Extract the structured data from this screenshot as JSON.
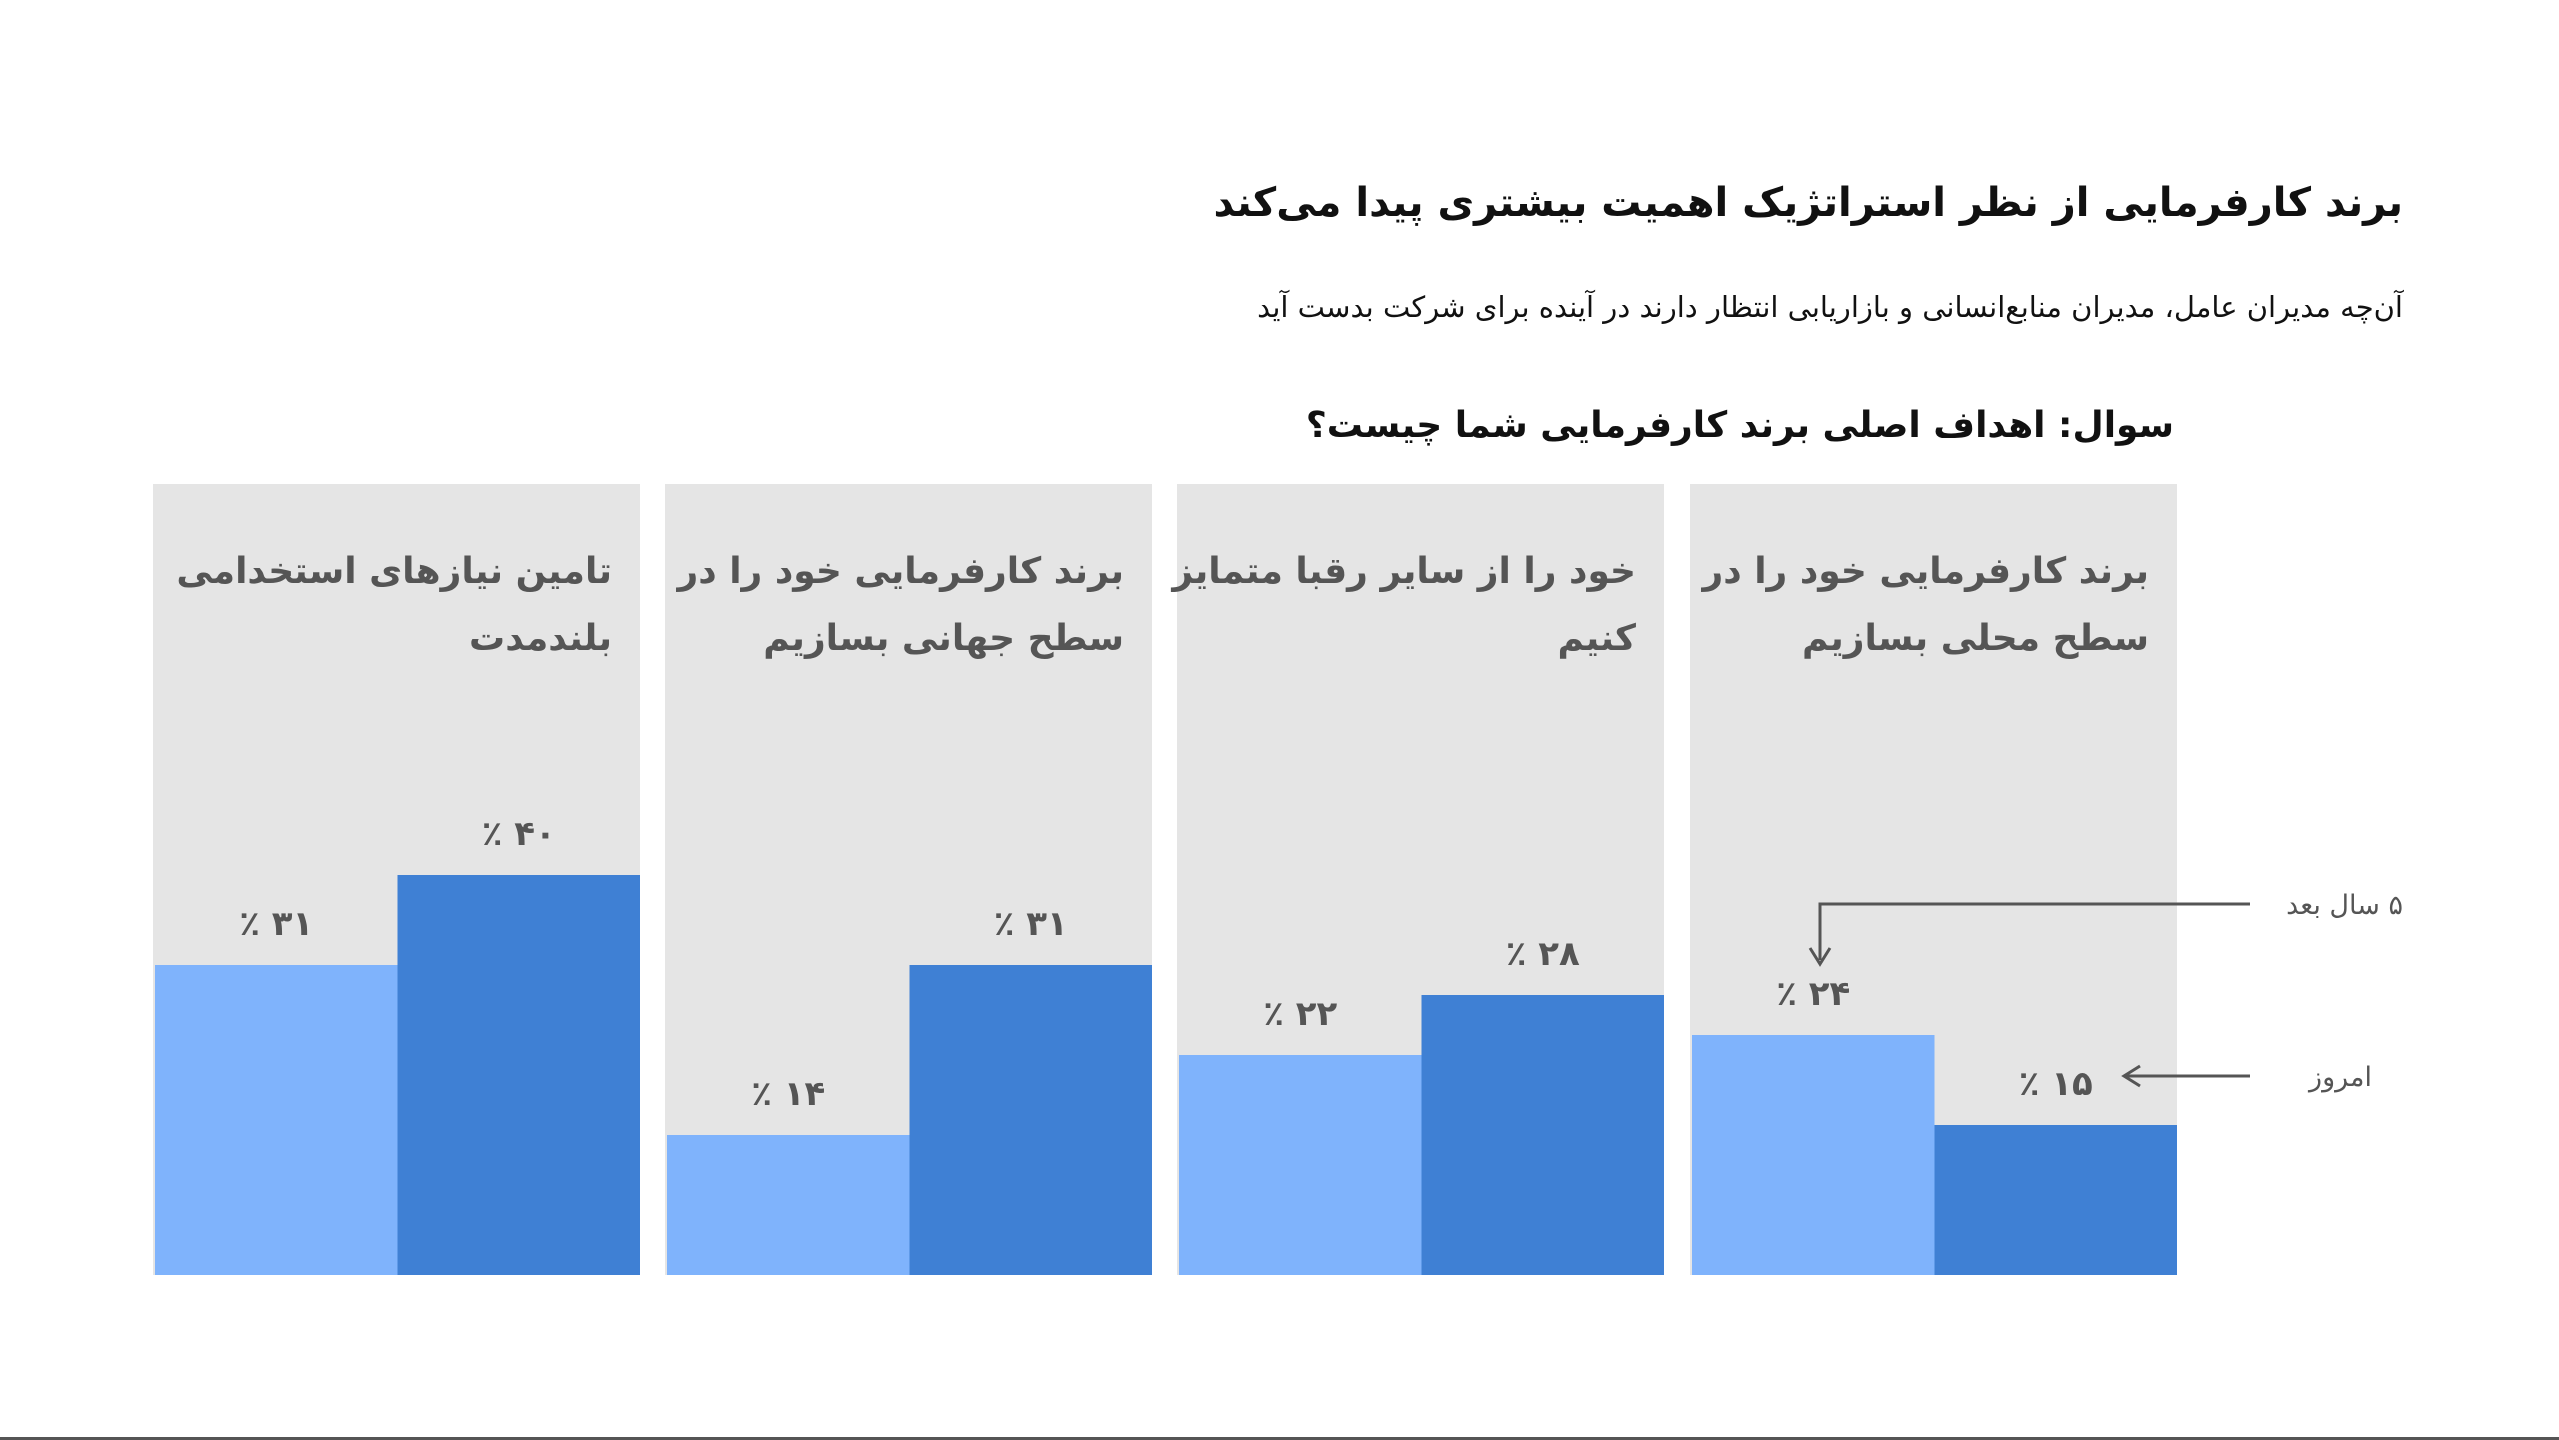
{
  "header": {
    "title": "برند کارفرمایی از نظر استراتژیک اهمیت بیشتری پیدا می‌کند",
    "subtitle": "آن‌چه مدیران عامل، مدیران منابع‌انسانی و بازاریابی انتظار دارند در آینده برای شرکت بدست آید",
    "question": "سوال: اهداف اصلی برند کارفرمایی شما چیست؟"
  },
  "chart_data": {
    "type": "bar",
    "title": "سوال: اهداف اصلی برند کارفرمایی شما چیست؟",
    "categories": [
      [
        "برند کارفرمایی خود را در",
        "سطح محلی بسازیم"
      ],
      [
        "خود را از سایر رقبا متمایز",
        "کنیم"
      ],
      [
        "برند کارفرمایی خود را در",
        "سطح جهانی بسازیم"
      ],
      [
        "تامین نیازهای استخدامی",
        "بلندمدت"
      ]
    ],
    "series": [
      {
        "name": "۵ سال بعد",
        "color": "#7fb3fc",
        "values": [
          24,
          22,
          14,
          31
        ]
      },
      {
        "name": "امروز",
        "color": "#3f80d4",
        "values": [
          15,
          28,
          31,
          40
        ]
      }
    ],
    "value_prefix": "٪ ",
    "unit": "%",
    "ylim": [
      0,
      50
    ],
    "panel_color": "#e5e5e5",
    "annotations": {
      "future": "۵ سال بعد",
      "today": "امروز"
    }
  }
}
